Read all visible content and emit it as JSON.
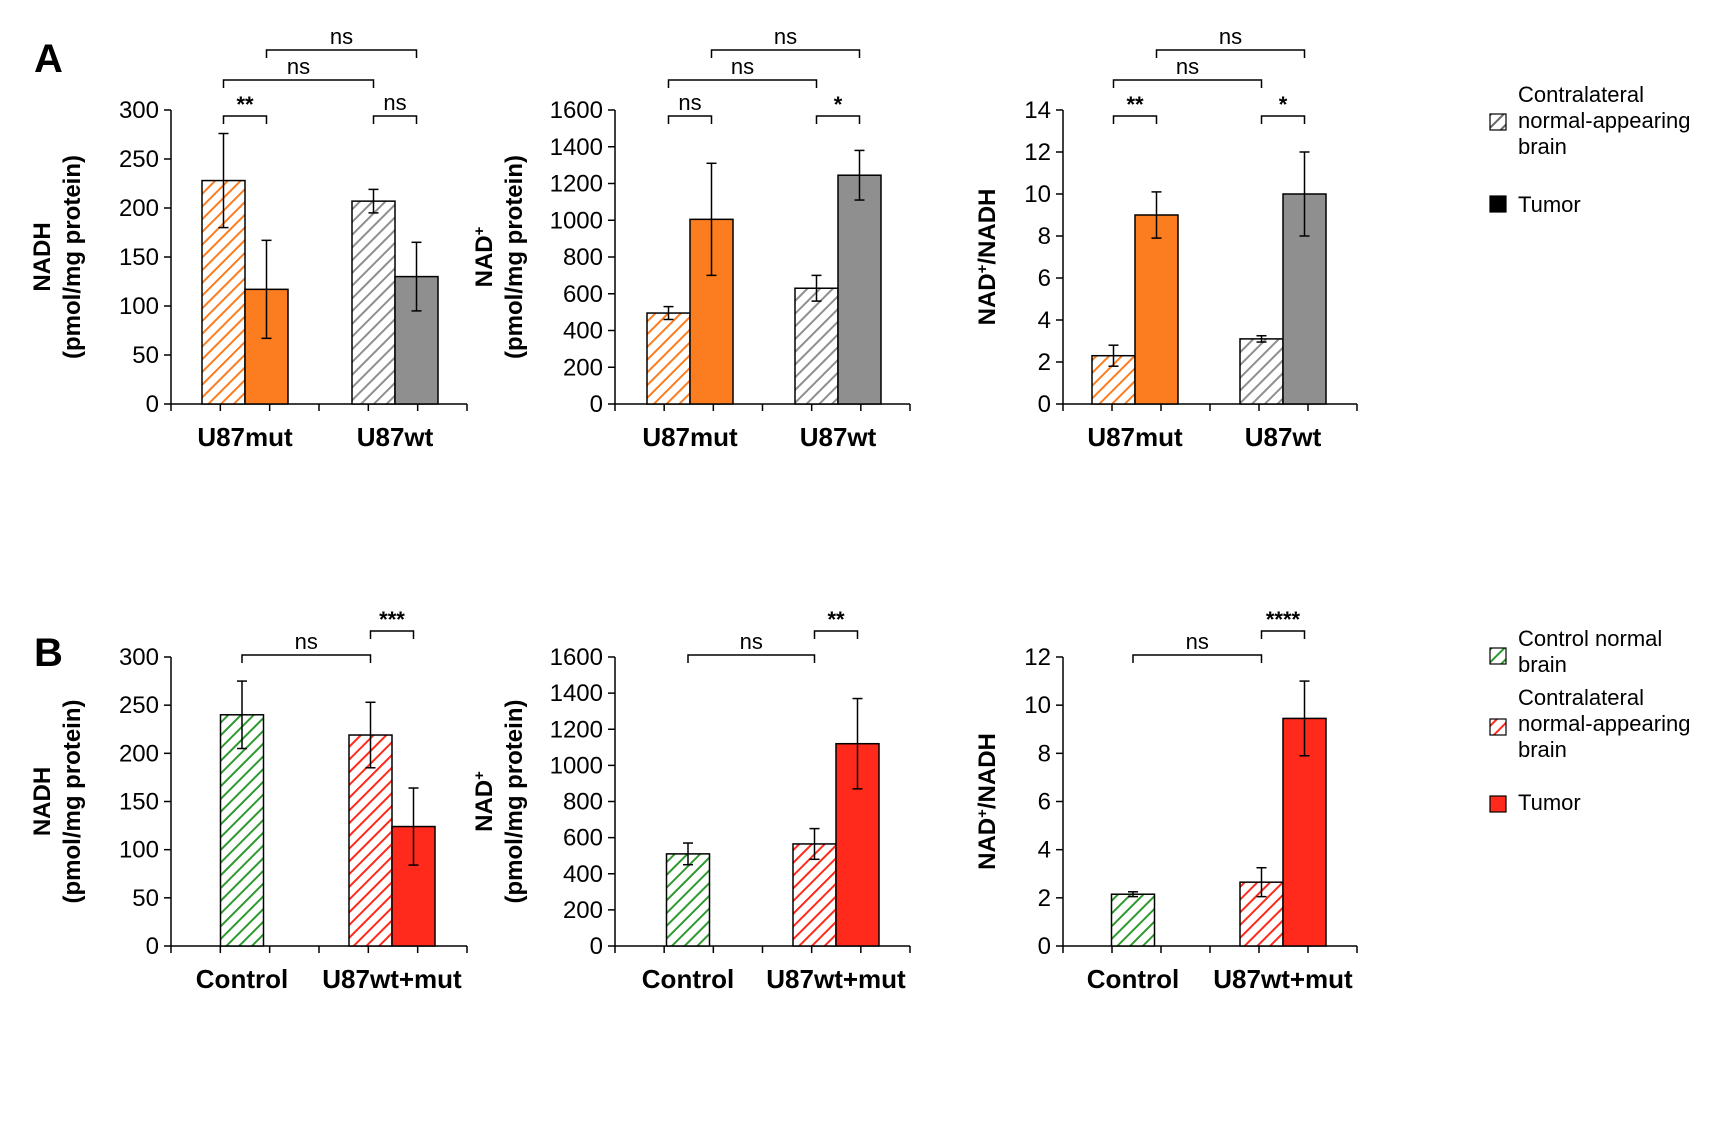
{
  "panels": {
    "A": "A",
    "B": "B"
  },
  "colors": {
    "orange": "#fb7d20",
    "gray": "#8f8f8f",
    "red": "#ff2a1c",
    "green": "#2f9a2f",
    "black": "#000000"
  },
  "legendA": {
    "items": [
      {
        "lines": [
          "Contralateral",
          "normal-appearing",
          "brain"
        ],
        "style": "hatch",
        "color": "#666666"
      },
      {
        "lines": [
          "Tumor"
        ],
        "style": "solid",
        "color": "#000000"
      }
    ]
  },
  "legendB": {
    "items": [
      {
        "lines": [
          "Control normal",
          "brain"
        ],
        "style": "hatch",
        "color": "#2f9a2f"
      },
      {
        "lines": [
          "Contralateral",
          "normal-appearing",
          "brain"
        ],
        "style": "hatch",
        "color": "#ff2a1c"
      },
      {
        "lines": [
          "Tumor"
        ],
        "style": "solid",
        "color": "#ff2a1c"
      }
    ]
  },
  "chart_data": [
    {
      "type": "bar",
      "panel": "A",
      "ylabel_lines": [
        "NADH",
        "(pmol/mg protein)"
      ],
      "ylim": [
        0,
        300
      ],
      "yticks": [
        0,
        50,
        100,
        150,
        200,
        250,
        300
      ],
      "categories": [
        "U87mut",
        "U87wt"
      ],
      "bars": [
        {
          "group": 0,
          "series": "Contralateral normal-appearing brain",
          "value": 228,
          "err": 48,
          "pattern": "hatch",
          "color": "#fb7d20"
        },
        {
          "group": 0,
          "series": "Tumor",
          "value": 117,
          "err": 50,
          "pattern": "solid",
          "color": "#fb7d20"
        },
        {
          "group": 1,
          "series": "Contralateral normal-appearing brain",
          "value": 207,
          "err": 12,
          "pattern": "hatch",
          "color": "#8f8f8f"
        },
        {
          "group": 1,
          "series": "Tumor",
          "value": 130,
          "err": 35,
          "pattern": "solid",
          "color": "#8f8f8f"
        }
      ],
      "brackets": [
        {
          "from": 0,
          "to": 1,
          "label": "**",
          "level": 0
        },
        {
          "from": 2,
          "to": 3,
          "label": "ns",
          "level": 0
        },
        {
          "from": 0,
          "to": 2,
          "label": "ns",
          "level": 1
        },
        {
          "from": 1,
          "to": 3,
          "label": "ns",
          "level": 2
        }
      ]
    },
    {
      "type": "bar",
      "panel": "A",
      "ylabel_lines": [
        "NAD+",
        "(pmol/mg protein)"
      ],
      "ylim": [
        0,
        1600
      ],
      "yticks": [
        0,
        200,
        400,
        600,
        800,
        1000,
        1200,
        1400,
        1600
      ],
      "categories": [
        "U87mut",
        "U87wt"
      ],
      "bars": [
        {
          "group": 0,
          "series": "Contralateral normal-appearing brain",
          "value": 495,
          "err": 35,
          "pattern": "hatch",
          "color": "#fb7d20"
        },
        {
          "group": 0,
          "series": "Tumor",
          "value": 1005,
          "err": 305,
          "pattern": "solid",
          "color": "#fb7d20"
        },
        {
          "group": 1,
          "series": "Contralateral normal-appearing brain",
          "value": 630,
          "err": 70,
          "pattern": "hatch",
          "color": "#8f8f8f"
        },
        {
          "group": 1,
          "series": "Tumor",
          "value": 1245,
          "err": 135,
          "pattern": "solid",
          "color": "#8f8f8f"
        }
      ],
      "brackets": [
        {
          "from": 0,
          "to": 1,
          "label": "ns",
          "level": 0
        },
        {
          "from": 2,
          "to": 3,
          "label": "*",
          "level": 0
        },
        {
          "from": 0,
          "to": 2,
          "label": "ns",
          "level": 1
        },
        {
          "from": 1,
          "to": 3,
          "label": "ns",
          "level": 2
        }
      ]
    },
    {
      "type": "bar",
      "panel": "A",
      "ylabel_lines": [
        "NAD+/NADH"
      ],
      "ylim": [
        0,
        14
      ],
      "yticks": [
        0,
        2,
        4,
        6,
        8,
        10,
        12,
        14
      ],
      "categories": [
        "U87mut",
        "U87wt"
      ],
      "bars": [
        {
          "group": 0,
          "series": "Contralateral normal-appearing brain",
          "value": 2.3,
          "err": 0.5,
          "pattern": "hatch",
          "color": "#fb7d20"
        },
        {
          "group": 0,
          "series": "Tumor",
          "value": 9.0,
          "err": 1.1,
          "pattern": "solid",
          "color": "#fb7d20"
        },
        {
          "group": 1,
          "series": "Contralateral normal-appearing brain",
          "value": 3.1,
          "err": 0.15,
          "pattern": "hatch",
          "color": "#8f8f8f"
        },
        {
          "group": 1,
          "series": "Tumor",
          "value": 10.0,
          "err": 2.0,
          "pattern": "solid",
          "color": "#8f8f8f"
        }
      ],
      "brackets": [
        {
          "from": 0,
          "to": 1,
          "label": "**",
          "level": 0
        },
        {
          "from": 2,
          "to": 3,
          "label": "*",
          "level": 0
        },
        {
          "from": 0,
          "to": 2,
          "label": "ns",
          "level": 1
        },
        {
          "from": 1,
          "to": 3,
          "label": "ns",
          "level": 2
        }
      ]
    },
    {
      "type": "bar",
      "panel": "B",
      "ylabel_lines": [
        "NADH",
        "(pmol/mg protein)"
      ],
      "ylim": [
        0,
        300
      ],
      "yticks": [
        0,
        50,
        100,
        150,
        200,
        250,
        300
      ],
      "categories": [
        "Control",
        "U87wt+mut"
      ],
      "bars": [
        {
          "group": 0,
          "series": "Control normal brain",
          "value": 240,
          "err": 35,
          "pattern": "hatch",
          "color": "#2f9a2f"
        },
        {
          "group": 1,
          "series": "Contralateral normal-appearing brain",
          "value": 219,
          "err": 34,
          "pattern": "hatch",
          "color": "#ff2a1c"
        },
        {
          "group": 1,
          "series": "Tumor",
          "value": 124,
          "err": 40,
          "pattern": "solid",
          "color": "#ff2a1c"
        }
      ],
      "brackets": [
        {
          "from": 1,
          "to": 2,
          "label": "***",
          "level": 0
        },
        {
          "from": 0,
          "to": 1,
          "label": "ns",
          "level": 1
        }
      ]
    },
    {
      "type": "bar",
      "panel": "B",
      "ylabel_lines": [
        "NAD+",
        "(pmol/mg protein)"
      ],
      "ylim": [
        0,
        1600
      ],
      "yticks": [
        0,
        200,
        400,
        600,
        800,
        1000,
        1200,
        1400,
        1600
      ],
      "categories": [
        "Control",
        "U87wt+mut"
      ],
      "bars": [
        {
          "group": 0,
          "series": "Control normal brain",
          "value": 510,
          "err": 60,
          "pattern": "hatch",
          "color": "#2f9a2f"
        },
        {
          "group": 1,
          "series": "Contralateral normal-appearing brain",
          "value": 565,
          "err": 85,
          "pattern": "hatch",
          "color": "#ff2a1c"
        },
        {
          "group": 1,
          "series": "Tumor",
          "value": 1120,
          "err": 250,
          "pattern": "solid",
          "color": "#ff2a1c"
        }
      ],
      "brackets": [
        {
          "from": 1,
          "to": 2,
          "label": "**",
          "level": 0
        },
        {
          "from": 0,
          "to": 1,
          "label": "ns",
          "level": 1
        }
      ]
    },
    {
      "type": "bar",
      "panel": "B",
      "ylabel_lines": [
        "NAD+/NADH"
      ],
      "ylim": [
        0,
        12
      ],
      "yticks": [
        0,
        2,
        4,
        6,
        8,
        10,
        12
      ],
      "categories": [
        "Control",
        "U87wt+mut"
      ],
      "bars": [
        {
          "group": 0,
          "series": "Control normal brain",
          "value": 2.15,
          "err": 0.1,
          "pattern": "hatch",
          "color": "#2f9a2f"
        },
        {
          "group": 1,
          "series": "Contralateral normal-appearing brain",
          "value": 2.65,
          "err": 0.6,
          "pattern": "hatch",
          "color": "#ff2a1c"
        },
        {
          "group": 1,
          "series": "Tumor",
          "value": 9.45,
          "err": 1.55,
          "pattern": "solid",
          "color": "#ff2a1c"
        }
      ],
      "brackets": [
        {
          "from": 1,
          "to": 2,
          "label": "****",
          "level": 0
        },
        {
          "from": 0,
          "to": 1,
          "label": "ns",
          "level": 1
        }
      ]
    }
  ]
}
